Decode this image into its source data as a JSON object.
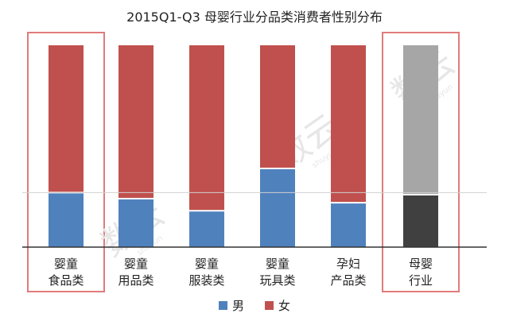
{
  "chart_data": {
    "type": "bar",
    "stacked": true,
    "normalized": true,
    "title": "2015Q1-Q3 母婴行业分品类消费者性别分布",
    "categories": [
      [
        "婴童",
        "食品类"
      ],
      [
        "婴童",
        "用品类"
      ],
      [
        "婴童",
        "服装类"
      ],
      [
        "婴童",
        "玩具类"
      ],
      [
        "孕妇",
        "产品类"
      ],
      [
        "母婴",
        "行业"
      ]
    ],
    "series": [
      {
        "name": "男",
        "values": [
          0.27,
          0.24,
          0.18,
          0.39,
          0.22,
          0.26
        ]
      },
      {
        "name": "女",
        "values": [
          0.73,
          0.76,
          0.82,
          0.61,
          0.78,
          0.74
        ]
      }
    ],
    "colors": {
      "male": "#4f81bd",
      "female": "#c0504d",
      "male_highlight": "#404040",
      "female_highlight": "#a6a6a6",
      "highlight_box": "#e07b7b",
      "reference_line": "#d0d0d0",
      "axis": "#333333"
    },
    "highlighted_categories": [
      0,
      5
    ],
    "reference_line_value": 0.27,
    "grid": false,
    "legend_position": "bottom"
  },
  "watermark": [
    "数云",
    "shuyun"
  ]
}
